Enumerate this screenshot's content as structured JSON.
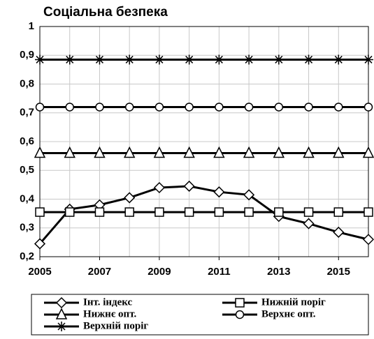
{
  "chart_data": {
    "type": "line",
    "title": "Соціальна безпека",
    "x": [
      2005,
      2006,
      2007,
      2008,
      2009,
      2010,
      2011,
      2012,
      2013,
      2014,
      2015,
      2016
    ],
    "series": [
      {
        "name": "Інт. індекс",
        "color": "#000000",
        "marker": "diamond",
        "values": [
          0.245,
          0.365,
          0.38,
          0.405,
          0.44,
          0.445,
          0.425,
          0.415,
          0.34,
          0.315,
          0.285,
          0.26
        ]
      },
      {
        "name": "Нижній поріг",
        "color": "#000000",
        "marker": "square",
        "values": [
          0.355,
          0.355,
          0.355,
          0.355,
          0.355,
          0.355,
          0.355,
          0.355,
          0.355,
          0.355,
          0.355,
          0.355
        ]
      },
      {
        "name": "Нижнє опт.",
        "color": "#000000",
        "marker": "triangle",
        "values": [
          0.56,
          0.56,
          0.56,
          0.56,
          0.56,
          0.56,
          0.56,
          0.56,
          0.56,
          0.56,
          0.56,
          0.56
        ]
      },
      {
        "name": "Верхнє опт.",
        "color": "#000000",
        "marker": "circle",
        "values": [
          0.72,
          0.72,
          0.72,
          0.72,
          0.72,
          0.72,
          0.72,
          0.72,
          0.72,
          0.72,
          0.72,
          0.72
        ]
      },
      {
        "name": "Верхній поріг",
        "color": "#000000",
        "marker": "star",
        "values": [
          0.885,
          0.885,
          0.885,
          0.885,
          0.885,
          0.885,
          0.885,
          0.885,
          0.885,
          0.885,
          0.885,
          0.885
        ]
      }
    ],
    "xlim": [
      2005,
      2016
    ],
    "xticks": [
      2005,
      2007,
      2009,
      2011,
      2013,
      2015
    ],
    "ylim": [
      0.2,
      1
    ],
    "yticks": [
      {
        "value": 0.2,
        "label": "0,2"
      },
      {
        "value": 0.3,
        "label": "0,3"
      },
      {
        "value": 0.4,
        "label": "0,4"
      },
      {
        "value": 0.5,
        "label": "0,5"
      },
      {
        "value": 0.6,
        "label": "0,6"
      },
      {
        "value": 0.7,
        "label": "0,7"
      },
      {
        "value": 0.8,
        "label": "0,8"
      },
      {
        "value": 0.9,
        "label": "0,9"
      },
      1
    ],
    "grid": true,
    "legend": "bottom"
  }
}
